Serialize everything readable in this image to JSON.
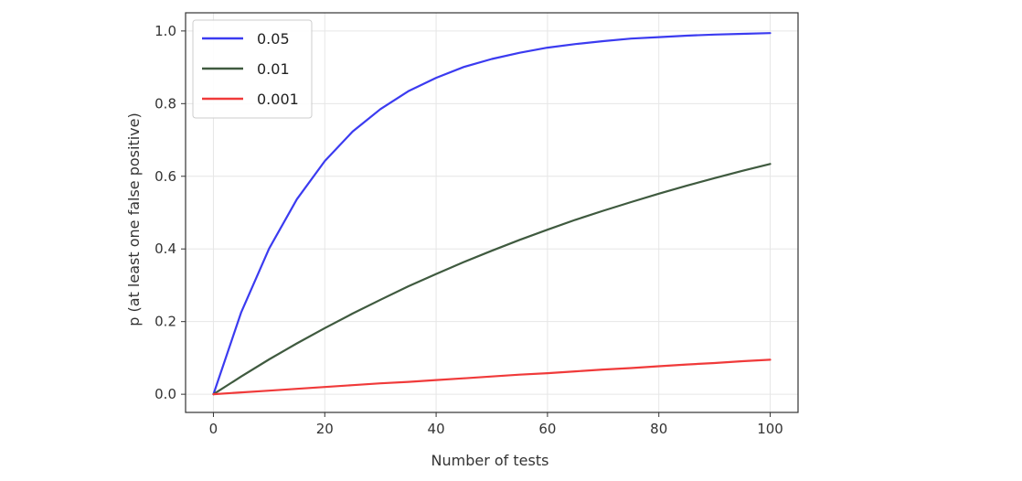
{
  "chart_data": {
    "type": "line",
    "title": "",
    "xlabel": "Number of tests",
    "ylabel": "p (at least one false positive)",
    "xlim": [
      -5,
      105
    ],
    "ylim": [
      -0.05,
      1.05
    ],
    "x_ticks": [
      "0",
      "20",
      "40",
      "60",
      "80",
      "100"
    ],
    "y_ticks": [
      "0.0",
      "0.2",
      "0.4",
      "0.6",
      "0.8",
      "1.0"
    ],
    "grid": true,
    "legend_position": "top-left",
    "x": [
      0,
      5,
      10,
      15,
      20,
      25,
      30,
      35,
      40,
      45,
      50,
      55,
      60,
      65,
      70,
      75,
      80,
      85,
      90,
      95,
      100
    ],
    "series": [
      {
        "name": "0.05",
        "color": "#3b3bf0",
        "values": [
          0.0,
          0.226,
          0.401,
          0.537,
          0.642,
          0.723,
          0.785,
          0.834,
          0.871,
          0.901,
          0.923,
          0.94,
          0.954,
          0.964,
          0.972,
          0.979,
          0.983,
          0.987,
          0.99,
          0.992,
          0.994
        ]
      },
      {
        "name": "0.01",
        "color": "#3f5a3f",
        "values": [
          0.0,
          0.049,
          0.096,
          0.14,
          0.182,
          0.222,
          0.26,
          0.297,
          0.331,
          0.364,
          0.395,
          0.425,
          0.453,
          0.48,
          0.505,
          0.529,
          0.552,
          0.574,
          0.595,
          0.615,
          0.634
        ]
      },
      {
        "name": "0.001",
        "color": "#f03a3a",
        "values": [
          0.0,
          0.005,
          0.01,
          0.015,
          0.02,
          0.025,
          0.03,
          0.034,
          0.039,
          0.044,
          0.049,
          0.054,
          0.058,
          0.063,
          0.068,
          0.072,
          0.077,
          0.082,
          0.086,
          0.091,
          0.095
        ]
      }
    ]
  }
}
